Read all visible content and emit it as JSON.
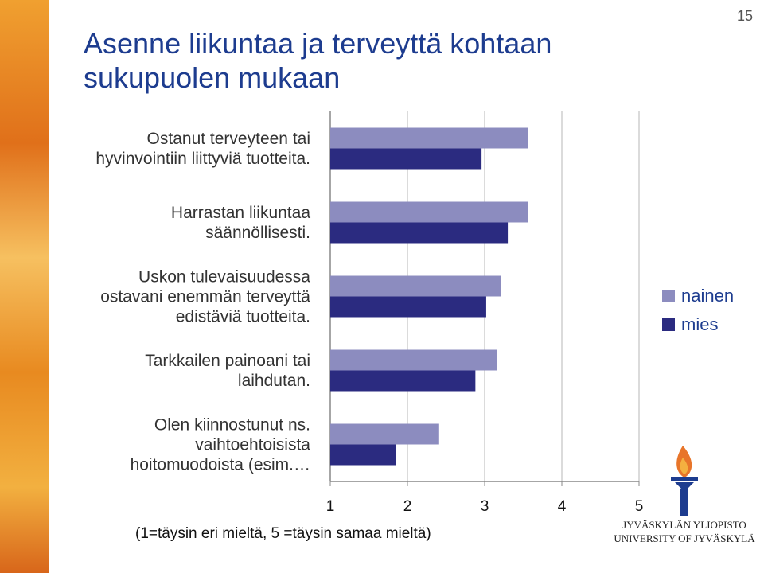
{
  "slide": {
    "page_number": "15",
    "logo": [
      "JYVÄSKYLÄN YLIOPISTO",
      "UNIVERSITY OF JYVÄSKYLÄ"
    ]
  },
  "chart_data": {
    "type": "hbar",
    "title": "Asenne liikuntaa ja terveyttä kohtaan\nsukupuolen mukaan",
    "x_label": "(1=täysin eri mieltä, 5 =täysin samaa mieltä)",
    "categories": [
      "Ostanut terveyteen tai\nhyvinvointiin liittyviä tuotteita.",
      "Harrastan liikuntaa\nsäännöllisesti.",
      "Uskon tulevaisuudessa\nostavani enemmän terveyttä\nedistäviä tuotteita.",
      "Tarkkailen painoani tai\nlaihdutan.",
      "Olen kiinnostunut ns.\nvaihtoehtoisista\nhoitomuodoista (esim.…"
    ],
    "series": [
      {
        "name": "nainen",
        "color": "#8c8cbf",
        "values": [
          3.56,
          3.56,
          3.21,
          3.16,
          2.4
        ]
      },
      {
        "name": "mies",
        "color": "#2b2b80",
        "values": [
          2.96,
          3.3,
          3.02,
          2.88,
          1.85
        ]
      }
    ],
    "xlim": [
      1,
      5
    ],
    "xticks": [
      1,
      2,
      3,
      4,
      5
    ],
    "grid": true,
    "legend": "right"
  }
}
